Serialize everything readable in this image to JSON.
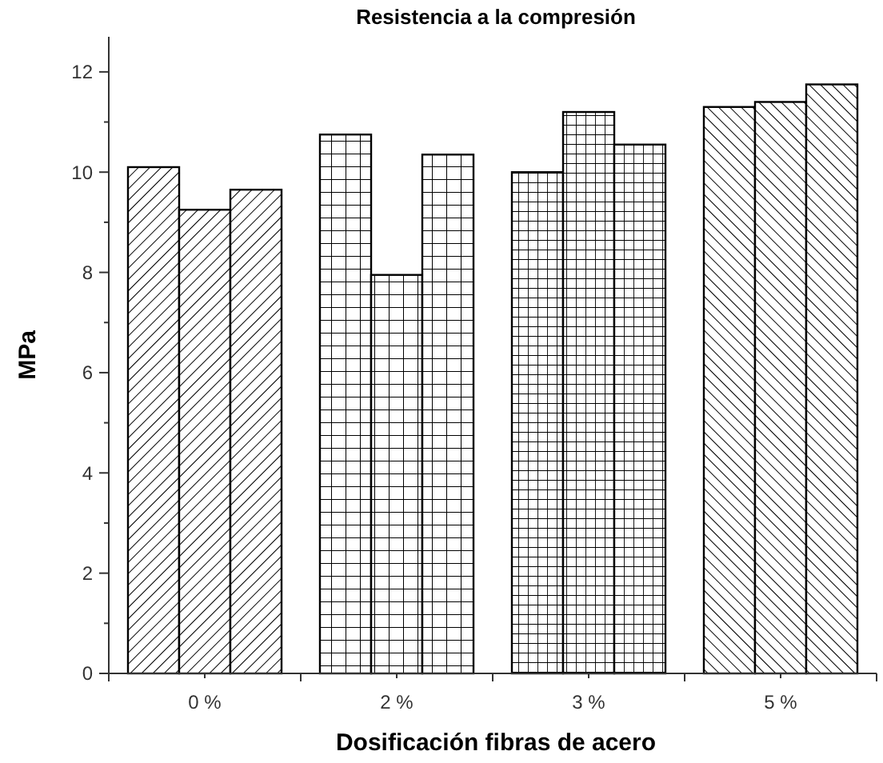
{
  "chart_data": {
    "type": "bar",
    "title": "Resistencia a la compresión",
    "xlabel": "Dosificación fibras de acero",
    "ylabel": "MPa",
    "categories": [
      "0 %",
      "2 %",
      "3 %",
      "5 %"
    ],
    "series": [
      {
        "color": "#000000",
        "values": [
          10.1,
          10.75,
          10.0,
          11.3
        ]
      },
      {
        "color": "#000000",
        "values": [
          9.25,
          7.95,
          11.2,
          11.4
        ]
      },
      {
        "color": "#000000",
        "values": [
          9.65,
          10.35,
          10.55,
          11.75
        ]
      }
    ],
    "ylim": [
      0,
      12.7
    ],
    "yticks": [
      0,
      2,
      4,
      6,
      8,
      10,
      12
    ],
    "grid": false
  }
}
